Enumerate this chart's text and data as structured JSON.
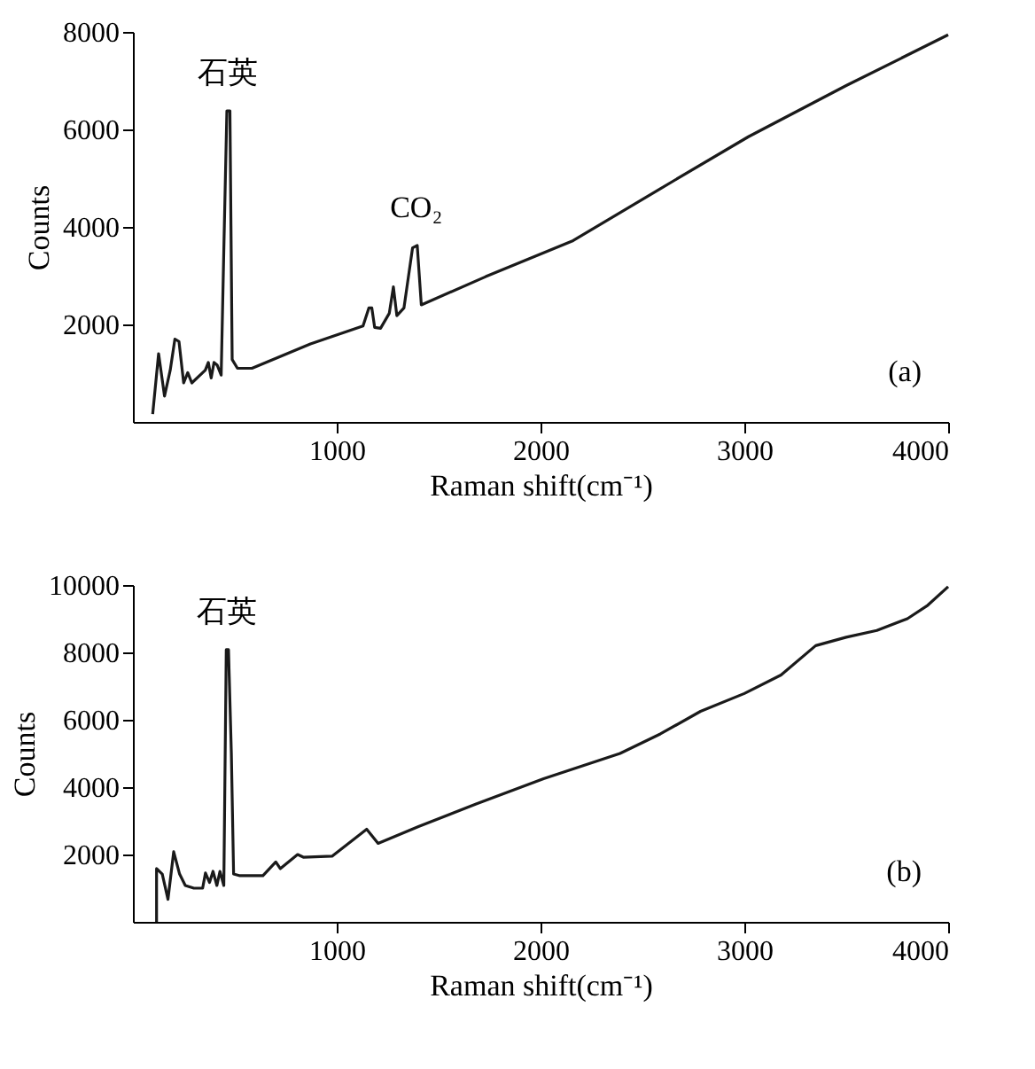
{
  "chart_data": [
    {
      "type": "line",
      "xlabel": "Raman shift(cm⁻¹)",
      "ylabel": "Counts",
      "xlim": [
        0,
        4000
      ],
      "ylim": [
        0,
        8000
      ],
      "xticks": [
        1000,
        2000,
        3000,
        4000
      ],
      "yticks": [
        2000,
        4000,
        6000,
        8000
      ],
      "grid": false,
      "marker": "none",
      "line_style": "solid",
      "annotations": [
        {
          "text": "石英",
          "x": 465,
          "y": 6380
        },
        {
          "text": "CO₂",
          "x": 1390,
          "y": 3620
        },
        "(a)"
      ],
      "series": [
        {
          "color": "#1a1a1a",
          "x": [
            97,
            126,
            155,
            183,
            206,
            226,
            249,
            269,
            289,
            355,
            370,
            384,
            398,
            413,
            433,
            447,
            461,
            476,
            487,
            513,
            584,
            871,
            1129,
            1158,
            1172,
            1186,
            1215,
            1258,
            1278,
            1295,
            1330,
            1372,
            1395,
            1415,
            1731,
            2160,
            2590,
            3020,
            3500,
            4000
          ],
          "values": [
            160,
            1400,
            530,
            1060,
            1700,
            1650,
            800,
            1010,
            800,
            1060,
            1220,
            900,
            1220,
            1170,
            960,
            3720,
            6380,
            6380,
            1280,
            1100,
            1100,
            1600,
            1970,
            2340,
            2340,
            1940,
            1920,
            2230,
            2770,
            2180,
            2340,
            3570,
            3620,
            2400,
            2980,
            3720,
            4790,
            5850,
            6900,
            7940
          ]
        }
      ]
    },
    {
      "type": "line",
      "xlabel": "Raman shift(cm⁻¹)",
      "ylabel": "Counts",
      "xlim": [
        0,
        4000
      ],
      "ylim": [
        0,
        10000
      ],
      "xticks": [
        1000,
        2000,
        3000,
        4000
      ],
      "yticks": [
        2000,
        4000,
        6000,
        8000,
        10000
      ],
      "grid": false,
      "marker": "none",
      "line_style": "solid",
      "annotations": [
        {
          "text": "石英",
          "x": 462,
          "y": 8080
        },
        "(b)"
      ],
      "series": [
        {
          "color": "#1a1a1a",
          "x": [
            116,
            116,
            144,
            172,
            200,
            229,
            257,
            299,
            342,
            356,
            376,
            393,
            412,
            427,
            446,
            458,
            469,
            483,
            494,
            525,
            638,
            701,
            723,
            808,
            836,
            977,
            1147,
            1203,
            1401,
            1684,
            2015,
            2390,
            2588,
            2785,
            3000,
            3180,
            3350,
            3500,
            3650,
            3800,
            3900,
            4000
          ],
          "values": [
            0,
            1580,
            1420,
            670,
            2080,
            1420,
            1080,
            1000,
            1000,
            1450,
            1170,
            1500,
            1080,
            1500,
            1080,
            8080,
            8080,
            5000,
            1420,
            1370,
            1370,
            1780,
            1580,
            2000,
            1920,
            1950,
            2750,
            2330,
            2830,
            3500,
            4250,
            5000,
            5580,
            6250,
            6780,
            7330,
            8200,
            8450,
            8650,
            9000,
            9400,
            9950
          ]
        }
      ]
    }
  ]
}
